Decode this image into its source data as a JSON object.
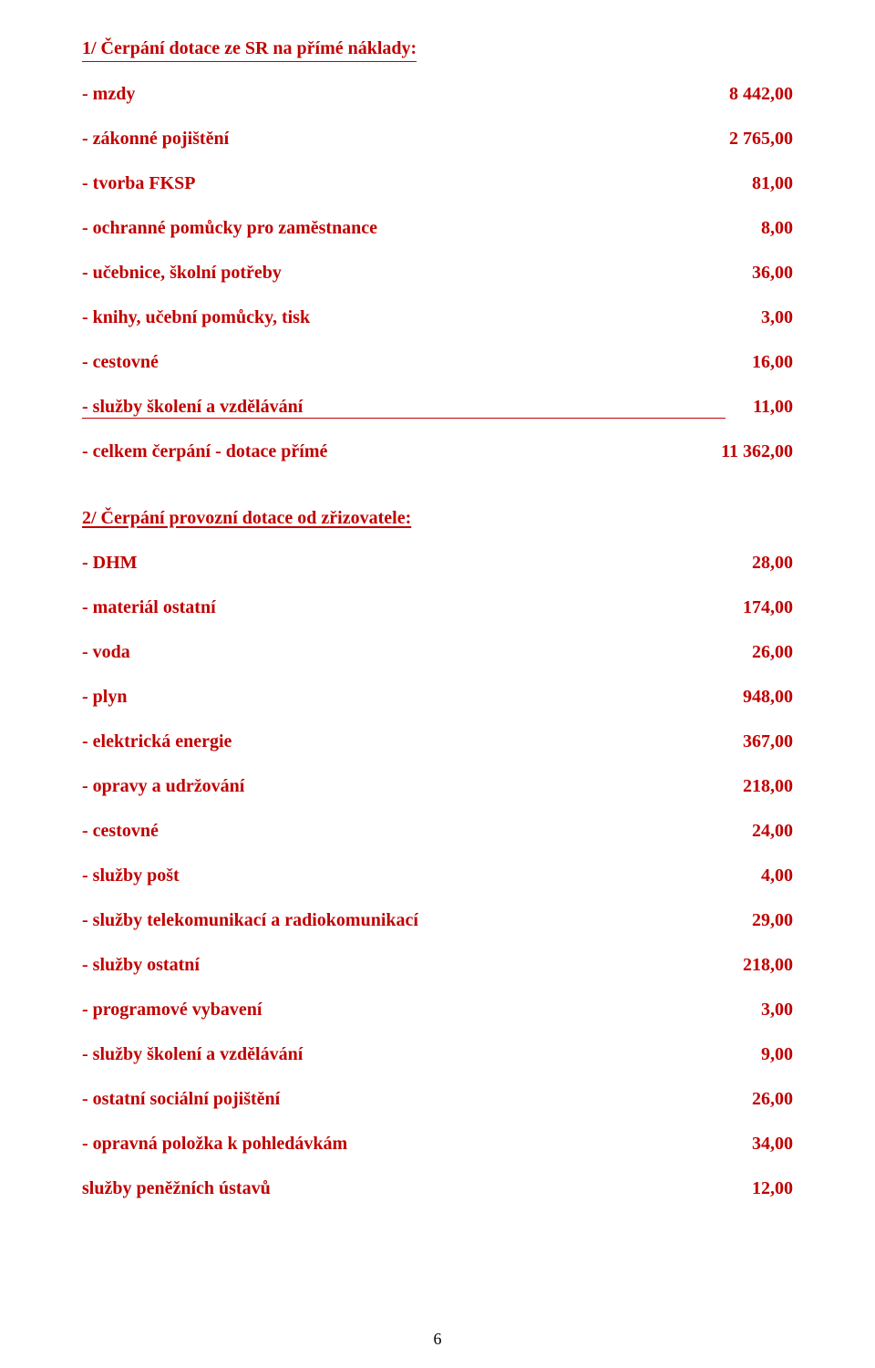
{
  "colors": {
    "text": "#c00000",
    "pageNumber": "#000000",
    "background": "#ffffff",
    "rule": "#c00000"
  },
  "typography": {
    "family": "Times New Roman",
    "size_pt": 15,
    "weight": "bold"
  },
  "section1": {
    "heading": "1/ Čerpání dotace ze SR na přímé náklady:",
    "items": [
      {
        "label": "- mzdy",
        "value": "8 442,00"
      },
      {
        "label": "- zákonné pojištění",
        "value": "2 765,00"
      },
      {
        "label": "- tvorba FKSP",
        "value": "81,00"
      },
      {
        "label": "- ochranné pomůcky pro zaměstnance",
        "value": "8,00"
      },
      {
        "label": "- učebnice, školní potřeby",
        "value": "36,00"
      },
      {
        "label": "- knihy, učební pomůcky, tisk",
        "value": "3,00"
      },
      {
        "label": "- cestovné",
        "value": "16,00"
      }
    ],
    "ruled_item": {
      "label": "- služby školení a vzdělávání",
      "value": "11,00"
    },
    "total": {
      "label": "- celkem čerpání - dotace přímé",
      "value": "11 362,00"
    }
  },
  "section2": {
    "heading": "2/ Čerpání  provozní dotace od zřizovatele:",
    "items": [
      {
        "label": "- DHM",
        "value": "28,00"
      },
      {
        "label": "- materiál ostatní",
        "value": "174,00"
      },
      {
        "label": "- voda",
        "value": "26,00"
      },
      {
        "label": "- plyn",
        "value": "948,00"
      },
      {
        "label": "- elektrická energie",
        "value": "367,00"
      },
      {
        "label": "- opravy a udržování",
        "value": "218,00"
      },
      {
        "label": "- cestovné",
        "value": "24,00"
      },
      {
        "label": "- služby pošt",
        "value": "4,00"
      },
      {
        "label": "- služby telekomunikací a radiokomunikací",
        "value": "29,00"
      },
      {
        "label": "- služby ostatní",
        "value": "218,00"
      },
      {
        "label": "- programové vybavení",
        "value": "3,00"
      },
      {
        "label": "- služby školení a vzdělávání",
        "value": "9,00"
      },
      {
        "label": "- ostatní sociální pojištění",
        "value": "26,00"
      },
      {
        "label": "- opravná položka k pohledávkám",
        "value": "34,00"
      },
      {
        "label": " služby peněžních ústavů",
        "value": "12,00"
      }
    ]
  },
  "page_number": "6"
}
